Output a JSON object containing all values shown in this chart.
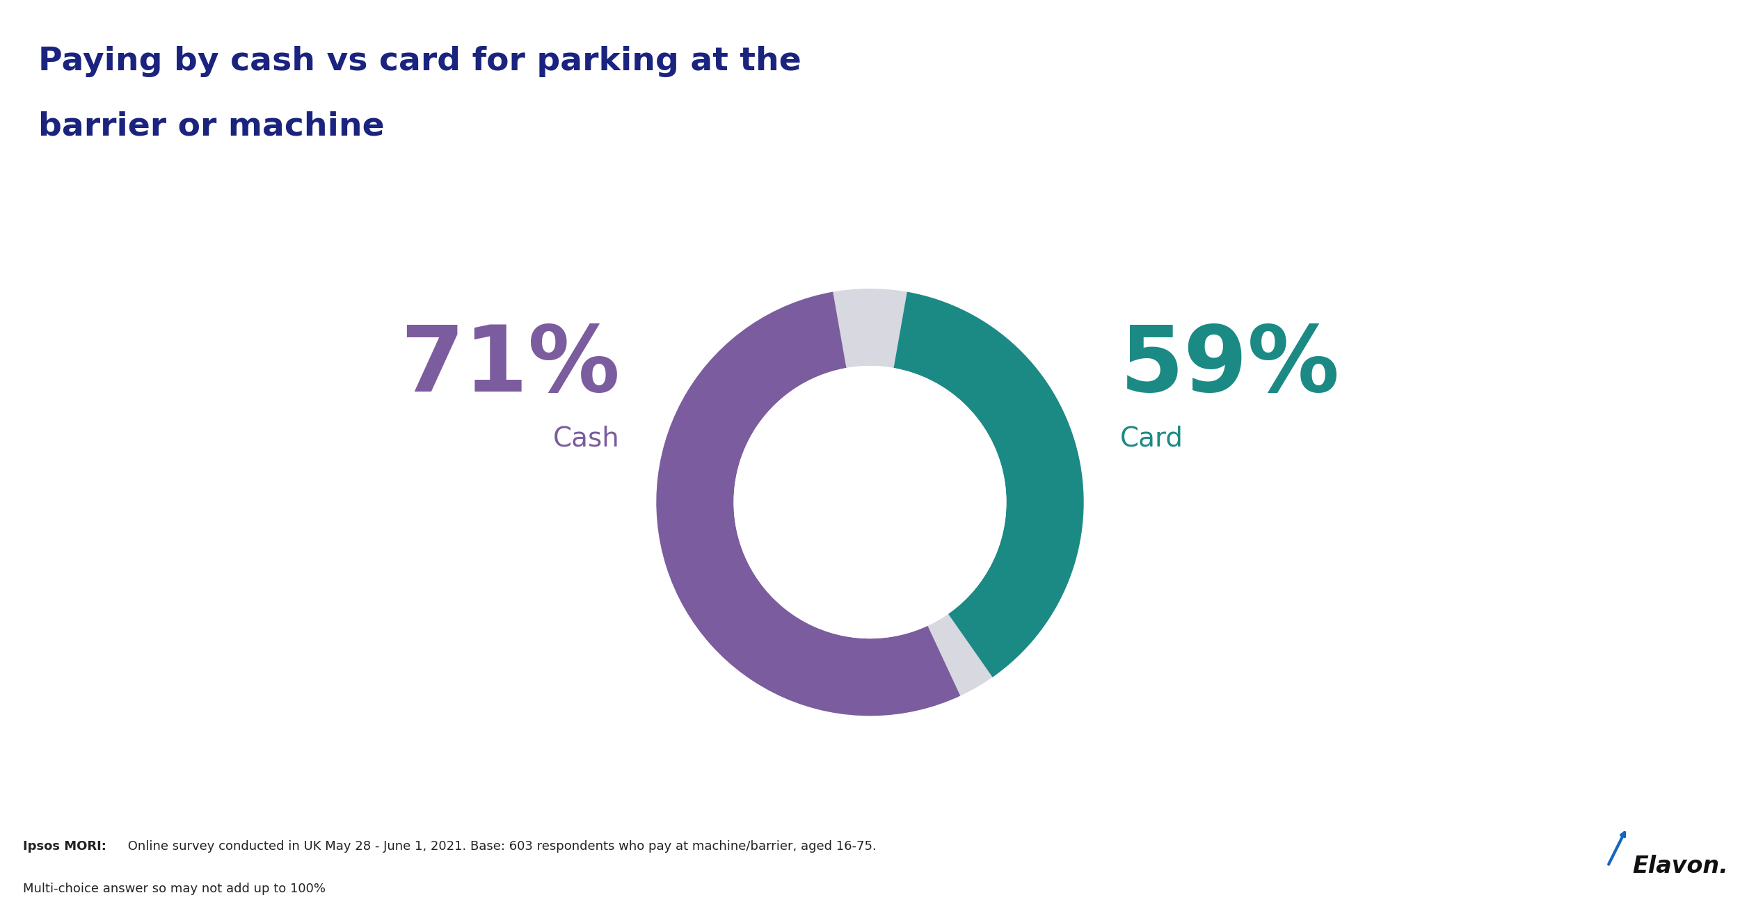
{
  "title_line1": "Paying by cash vs card for parking at the",
  "title_line2": "barrier or machine",
  "title_color": "#1a237e",
  "title_bg_color": "#e4e8f0",
  "main_bg_color": "#ffffff",
  "cash_pct": 71,
  "card_pct": 59,
  "cash_label": "Cash",
  "card_label": "Card",
  "cash_color": "#7b5c9e",
  "card_color": "#1b8a85",
  "gap_color": "#d8d8e0",
  "footer_text_bold": "Ipsos MORI:",
  "footer_text": " Online survey conducted in UK May 28 - June 1, 2021. Base: 603 respondents who pay at machine/barrier, aged 16-75.",
  "footer_text2": "Multi-choice answer so may not add up to 100%",
  "footer_bg_color": "#eaedf2",
  "elavon_color": "#111111",
  "elavon_blue": "#1565c0",
  "cash_pct_fontsize": 95,
  "card_pct_fontsize": 95,
  "label_fontsize": 28,
  "title_fontsize": 34
}
